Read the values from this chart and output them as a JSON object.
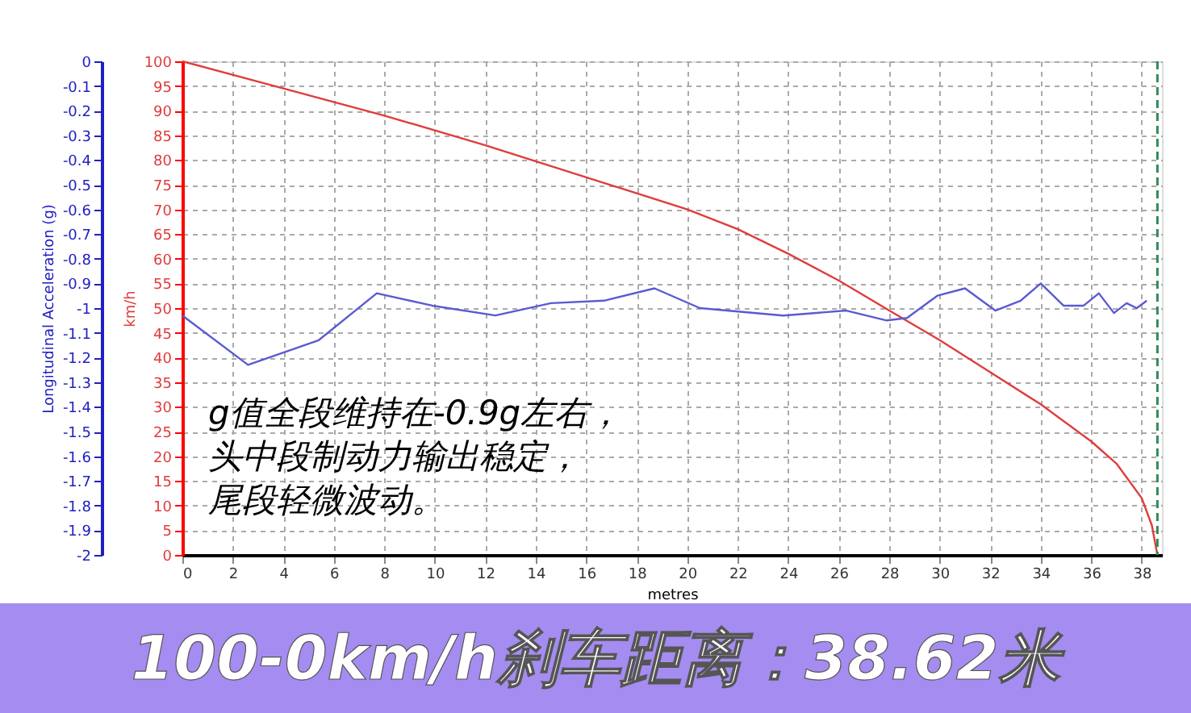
{
  "chart_data": {
    "type": "line",
    "title": "100-0km/h刹车距离：38.62米",
    "xlabel": "metres",
    "ylabel": "km/h",
    "y2label": "Longitudinal Acceleration (g)",
    "xlim": [
      0,
      38.8
    ],
    "xticks": [
      0,
      2,
      4,
      6,
      8,
      10,
      12,
      14,
      16,
      18,
      20,
      22,
      24,
      26,
      28,
      30,
      32,
      34,
      36,
      38
    ],
    "ylim": [
      0,
      100
    ],
    "yticks": [
      0,
      5,
      10,
      15,
      20,
      25,
      30,
      35,
      40,
      45,
      50,
      55,
      60,
      65,
      70,
      75,
      80,
      85,
      90,
      95,
      100
    ],
    "y2lim": [
      -2,
      0
    ],
    "y2ticks": [
      0,
      -0.1,
      -0.2,
      -0.3,
      -0.4,
      -0.5,
      -0.6,
      -0.7,
      -0.8,
      -0.9,
      -1,
      -1.1,
      -1.2,
      -1.3,
      -1.4,
      -1.5,
      -1.6,
      -1.7,
      -1.8,
      -1.9,
      -2
    ],
    "grid": true,
    "marker": "none",
    "line_style": "solid",
    "series": [
      {
        "color": "#e03c3c",
        "x": [
          0,
          4,
          8,
          12,
          16,
          20,
          22,
          24,
          26,
          28,
          30,
          32,
          34,
          36,
          37,
          38,
          38.4,
          38.62
        ],
        "values": [
          100,
          94.5,
          89,
          83,
          76.5,
          70,
          66,
          61,
          55.6,
          49.5,
          43.5,
          37,
          30.5,
          23,
          18.5,
          11.5,
          6,
          0
        ]
      },
      {
        "color": "#5a5ad2",
        "axis": "y2",
        "x": [
          0,
          2.6,
          5.4,
          7.7,
          9.9,
          12.4,
          14.6,
          16.7,
          18.7,
          20.5,
          23.8,
          26.3,
          27.9,
          28.7,
          29.9,
          31.0,
          32.2,
          33.2,
          34.0,
          34.9,
          35.7,
          36.3,
          36.9,
          37.4,
          37.8,
          38.2
        ],
        "values": [
          -1.03,
          -1.23,
          -1.13,
          -0.94,
          -0.99,
          -1.03,
          -0.98,
          -0.97,
          -0.92,
          -1.0,
          -1.03,
          -1.01,
          -1.05,
          -1.04,
          -0.95,
          -0.92,
          -1.01,
          -0.97,
          -0.9,
          -0.99,
          -0.99,
          -0.94,
          -1.02,
          -0.98,
          -1.0,
          -0.97
        ]
      }
    ],
    "ref_lines": [
      {
        "axis": "x",
        "value": 38.62,
        "color": "#2e8b57",
        "line_style": "dashed"
      }
    ],
    "annotations": [
      "g值全段维持在-0.9g左右，",
      "头中段制动力输出稳定，",
      "尾段轻微波动。"
    ]
  }
}
